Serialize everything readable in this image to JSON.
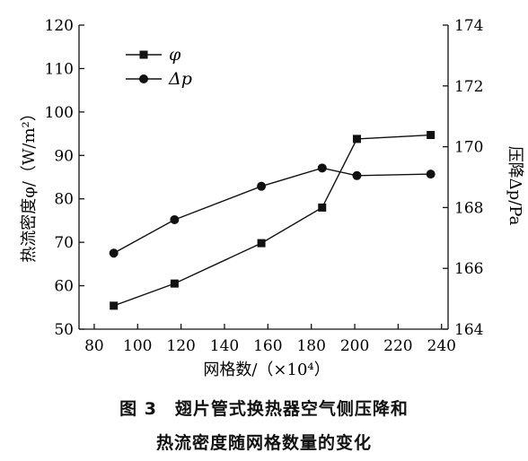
{
  "chart_data": {
    "type": "line",
    "x": [
      89,
      117,
      157,
      185,
      201,
      235
    ],
    "x_ticks": [
      80,
      100,
      120,
      140,
      160,
      180,
      200,
      220,
      240
    ],
    "xlim": [
      73,
      243
    ],
    "xlabel": "网格数/（×10⁴）",
    "ylabel_left": "热流密度φ/（W/m²）",
    "ylim_left": [
      50,
      120
    ],
    "yticks_left": [
      50,
      60,
      70,
      80,
      90,
      100,
      110,
      120
    ],
    "ylabel_right": "压降Δp/Pa",
    "ylim_right": [
      164,
      174
    ],
    "yticks_right": [
      164,
      166,
      168,
      170,
      172,
      174
    ],
    "series": [
      {
        "name": "φ",
        "axis": "left",
        "marker": "square",
        "values": [
          55.4,
          60.5,
          69.8,
          78.0,
          93.8,
          94.7
        ]
      },
      {
        "name": "Δp",
        "axis": "right",
        "marker": "circle",
        "values": [
          166.5,
          167.6,
          168.7,
          169.3,
          169.05,
          169.1
        ]
      }
    ],
    "legend_position": "top-left",
    "grid": false
  },
  "caption": {
    "line1": "图 3　翅片管式换热器空气侧压降和",
    "line2": "热流密度随网格数量的变化"
  }
}
